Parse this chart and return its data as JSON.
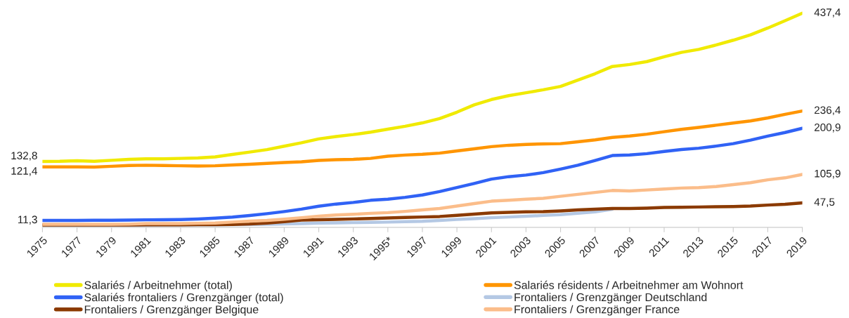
{
  "chart_data": {
    "type": "line",
    "categories": [
      "1975",
      null,
      "1977",
      null,
      "1979",
      null,
      "1981",
      null,
      "1983",
      null,
      "1985",
      null,
      "1987",
      null,
      "1989",
      null,
      "1991",
      null,
      "1993",
      null,
      "1995*",
      null,
      "1997",
      null,
      "1999",
      null,
      "2001",
      null,
      "2003",
      null,
      "2005",
      null,
      "2007",
      null,
      "2009",
      null,
      "2011",
      null,
      "2013",
      null,
      "2015",
      null,
      "2017",
      null,
      "2019"
    ],
    "relative": false,
    "tick_labels": "x",
    "grid": false,
    "legend": "bottom",
    "marker": "none",
    "line_style": "solid",
    "series": [
      {
        "name": "Salariés / Arbeitnehmer (total)",
        "color": "#f0ea00",
        "values": [
          132.8,
          133,
          134,
          133,
          135,
          137,
          138,
          138,
          139,
          140,
          142,
          147,
          152,
          157,
          164,
          171,
          179,
          184,
          188,
          193,
          199,
          205,
          212,
          221,
          234,
          249,
          260,
          268,
          274,
          280,
          287,
          300,
          313,
          328,
          332,
          338,
          348,
          357,
          363,
          372,
          382,
          393,
          407,
          422,
          437.4
        ],
        "value_labels": [
          "132,8",
          null,
          null,
          null,
          null,
          null,
          null,
          null,
          null,
          null,
          null,
          null,
          null,
          null,
          null,
          null,
          null,
          null,
          null,
          null,
          null,
          null,
          null,
          null,
          null,
          null,
          null,
          null,
          null,
          null,
          null,
          null,
          null,
          null,
          null,
          null,
          null,
          null,
          null,
          null,
          null,
          null,
          null,
          null,
          "437,4"
        ]
      },
      {
        "name": "Salariés résidents / Arbeitnehmer am Wohnort",
        "color": "#ff9500",
        "values": [
          121.4,
          121.6,
          121.6,
          121,
          122.7,
          124.3,
          124.9,
          124.3,
          123.8,
          123.2,
          123.8,
          125.4,
          127,
          128.7,
          130.4,
          132,
          134.8,
          136.4,
          137,
          139,
          143.6,
          145.8,
          147.4,
          149.8,
          154.3,
          158.7,
          163.2,
          166,
          167.7,
          168.8,
          169.3,
          173.2,
          177.1,
          182.1,
          184.9,
          188.8,
          193.8,
          198.8,
          202.7,
          207.2,
          211.7,
          216.1,
          222.2,
          229.5,
          236.4
        ],
        "value_labels": [
          "121,4",
          null,
          null,
          null,
          null,
          null,
          null,
          null,
          null,
          null,
          null,
          null,
          null,
          null,
          null,
          null,
          null,
          null,
          null,
          null,
          null,
          null,
          null,
          null,
          null,
          null,
          null,
          null,
          null,
          null,
          null,
          null,
          null,
          null,
          null,
          null,
          null,
          null,
          null,
          null,
          null,
          null,
          null,
          null,
          "236,4"
        ]
      },
      {
        "name": "Salariés frontaliers / Grenzgänger (total)",
        "color": "#3062f5",
        "values": [
          11.3,
          11.4,
          11.5,
          11.7,
          11.9,
          12.2,
          12.7,
          12.8,
          13.2,
          14.3,
          16,
          18.2,
          21.5,
          25.3,
          29.7,
          34.7,
          40.7,
          45.1,
          48.4,
          52.8,
          55,
          58.9,
          63.8,
          70.7,
          79.1,
          87.4,
          96.4,
          101.4,
          104.7,
          109.7,
          117,
          124.8,
          134.8,
          144.8,
          145.9,
          148.7,
          153.2,
          157.1,
          159.9,
          164.3,
          169.3,
          176.6,
          184.9,
          192.2,
          200.9
        ],
        "value_labels": [
          "11,3",
          null,
          null,
          null,
          null,
          null,
          null,
          null,
          null,
          null,
          null,
          null,
          null,
          null,
          null,
          null,
          null,
          null,
          null,
          null,
          null,
          null,
          null,
          null,
          null,
          null,
          null,
          null,
          null,
          null,
          null,
          null,
          null,
          null,
          null,
          null,
          null,
          null,
          null,
          null,
          null,
          null,
          null,
          null,
          "200,9"
        ]
      },
      {
        "name": "Frontaliers / Grenzgänger Deutschland",
        "color": "#b4c8e4",
        "values": [
          1.5,
          1.5,
          1.5,
          1.6,
          1.6,
          1.7,
          1.8,
          1.9,
          2,
          2.2,
          2.5,
          2.8,
          3,
          3.5,
          4,
          5,
          6,
          6.5,
          7,
          7.5,
          8,
          9,
          9.5,
          11.5,
          13.4,
          15,
          17,
          18.5,
          20,
          21.7,
          23.4,
          26,
          29,
          34.5,
          null,
          null,
          null,
          null,
          null,
          null,
          null,
          null,
          null,
          null,
          null
        ]
      },
      {
        "name": "Frontaliers / Grenzgänger Belgique",
        "color": "#8b3a00",
        "values": [
          2,
          2,
          2,
          2,
          2,
          2.1,
          2.2,
          2.3,
          2.4,
          2.6,
          2.8,
          3,
          4,
          6,
          9,
          12,
          13,
          13.5,
          14.5,
          15.5,
          16.5,
          17.5,
          18.5,
          19.5,
          22,
          24.5,
          27,
          28,
          29,
          29.5,
          31,
          33,
          34.5,
          36,
          36,
          36.7,
          38,
          38.5,
          39,
          39.5,
          40,
          41,
          43,
          44.5,
          47.5
        ],
        "value_labels": [
          null,
          null,
          null,
          null,
          null,
          null,
          null,
          null,
          null,
          null,
          null,
          null,
          null,
          null,
          null,
          null,
          null,
          null,
          null,
          null,
          null,
          null,
          null,
          null,
          null,
          null,
          null,
          null,
          null,
          null,
          null,
          null,
          null,
          null,
          null,
          null,
          null,
          null,
          null,
          null,
          null,
          null,
          null,
          null,
          "47,5"
        ]
      },
      {
        "name": "Frontaliers / Grenzgänger France",
        "color": "#fbbd8a",
        "values": [
          3.5,
          3.5,
          3.5,
          3.5,
          3.6,
          3.7,
          5,
          5,
          5,
          5.5,
          6,
          8,
          10,
          11.5,
          14,
          17,
          20,
          22.5,
          24,
          26,
          27.5,
          30,
          33,
          36,
          41,
          46,
          51,
          53,
          55,
          57,
          61,
          65,
          69,
          73,
          72,
          74,
          76,
          78,
          79,
          81,
          85,
          89,
          95,
          99,
          105.9
        ],
        "value_labels": [
          null,
          null,
          null,
          null,
          null,
          null,
          null,
          null,
          null,
          null,
          null,
          null,
          null,
          null,
          null,
          null,
          null,
          null,
          null,
          null,
          null,
          null,
          null,
          null,
          null,
          null,
          null,
          null,
          null,
          null,
          null,
          null,
          null,
          null,
          null,
          null,
          null,
          null,
          null,
          null,
          null,
          null,
          null,
          null,
          "105,9"
        ]
      }
    ]
  }
}
